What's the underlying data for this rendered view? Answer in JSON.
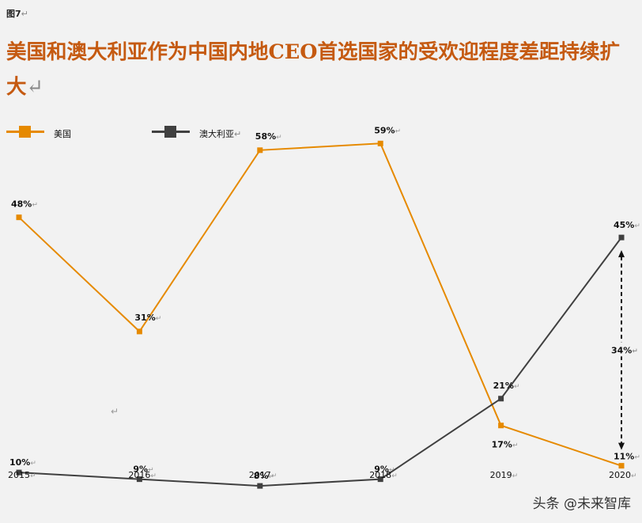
{
  "figure_label": "图7",
  "return_mark": "↵",
  "watermark": "头条 @未来智库",
  "chart_data": {
    "type": "line",
    "title": "美国和澳大利亚作为中国内地CEO首选国家的受欢迎程度差距持续扩大",
    "categories": [
      "2015",
      "2016",
      "2017",
      "2018",
      "2019",
      "2020"
    ],
    "series": [
      {
        "name": "美国",
        "values": [
          48,
          31,
          58,
          59,
          17,
          11
        ],
        "color": "#e68a00"
      },
      {
        "name": "澳大利亚",
        "values": [
          10,
          9,
          8,
          9,
          21,
          45
        ],
        "color": "#404040"
      }
    ],
    "ylim": [
      0,
      70
    ],
    "grid": false,
    "legend_position": "top-left",
    "annotation": {
      "text": "34%",
      "category": "2020",
      "from_value": 45,
      "to_value": 11
    }
  }
}
